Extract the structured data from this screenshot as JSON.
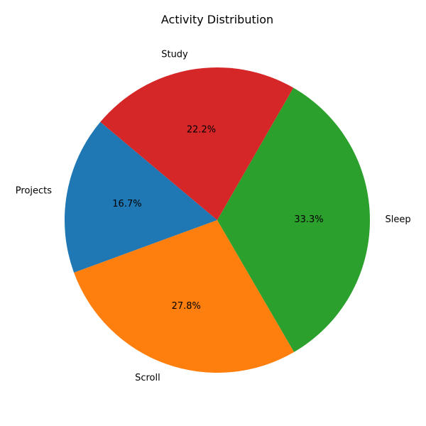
{
  "chart_data": {
    "type": "pie",
    "title": "Activity Distribution",
    "slices": [
      {
        "label": "Projects",
        "value": 16.7,
        "pct_label": "16.7%",
        "color": "#1f77b4"
      },
      {
        "label": "Scroll",
        "value": 27.8,
        "pct_label": "27.8%",
        "color": "#ff7f0e"
      },
      {
        "label": "Sleep",
        "value": 33.3,
        "pct_label": "33.3%",
        "color": "#2ca02c"
      },
      {
        "label": "Study",
        "value": 22.2,
        "pct_label": "22.2%",
        "color": "#d62728"
      }
    ],
    "start_angle_deg": 140,
    "direction": "counterclockwise"
  }
}
